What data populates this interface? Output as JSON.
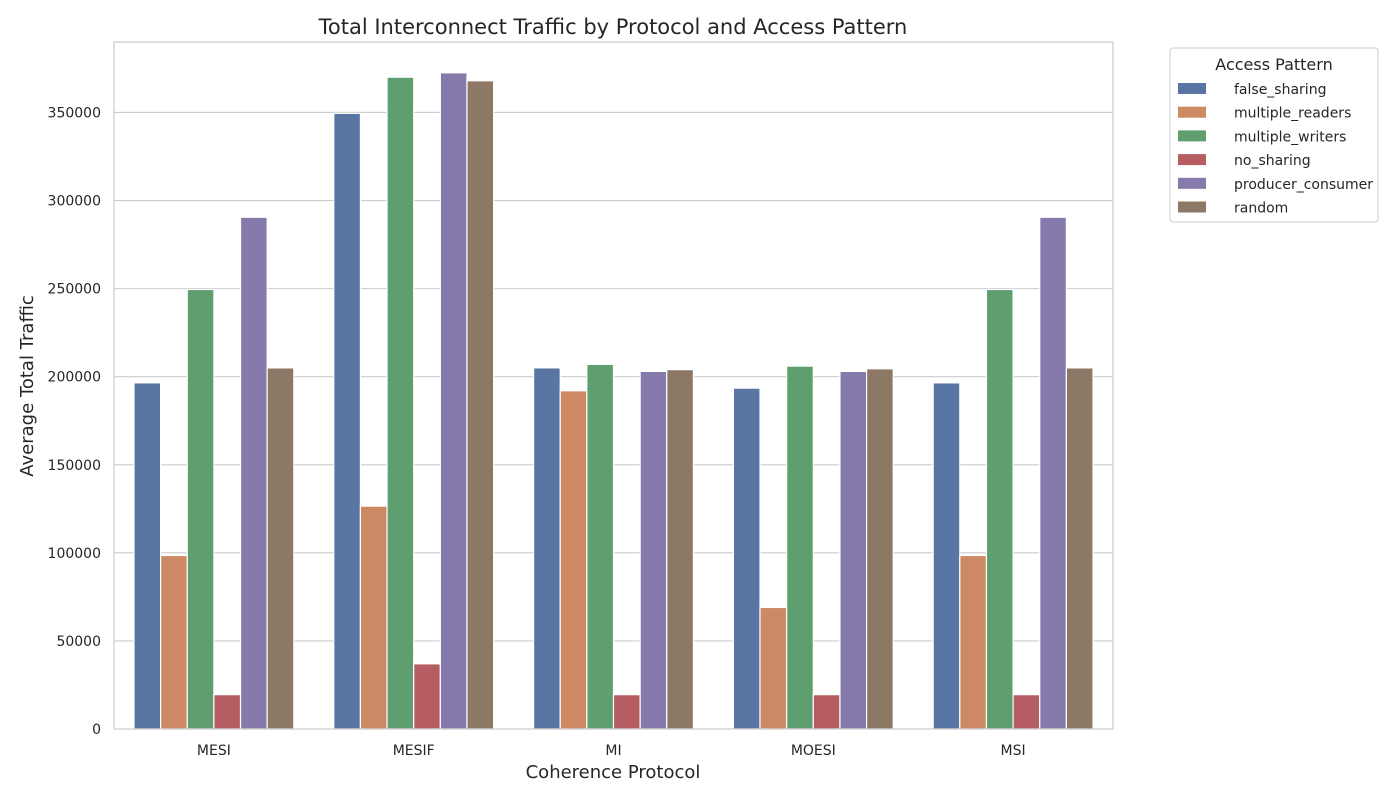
{
  "chart_data": {
    "type": "bar",
    "title": "Total Interconnect Traffic by Protocol and Access Pattern",
    "xlabel": "Coherence Protocol",
    "ylabel": "Average Total Traffic",
    "categories": [
      "MESI",
      "MESIF",
      "MI",
      "MOESI",
      "MSI"
    ],
    "ylim": [
      0,
      390000
    ],
    "yticks": [
      0,
      50000,
      100000,
      150000,
      200000,
      250000,
      300000,
      350000
    ],
    "ytick_labels": [
      "0",
      "50000",
      "100000",
      "150000",
      "200000",
      "250000",
      "300000",
      "350000"
    ],
    "grid": "horizontal",
    "legend": {
      "title": "Access Pattern",
      "position": "outside-top-right"
    },
    "series": [
      {
        "name": "false_sharing",
        "color": "#5875a4",
        "values": [
          196500,
          349500,
          205000,
          193500,
          196500
        ]
      },
      {
        "name": "multiple_readers",
        "color": "#cc8963",
        "values": [
          98500,
          126500,
          192000,
          69000,
          98500
        ]
      },
      {
        "name": "multiple_writers",
        "color": "#5f9e6e",
        "values": [
          249500,
          370000,
          207000,
          206000,
          249500
        ]
      },
      {
        "name": "no_sharing",
        "color": "#b55d60",
        "values": [
          19500,
          37000,
          19500,
          19500,
          19500
        ]
      },
      {
        "name": "producer_consumer",
        "color": "#857aab",
        "values": [
          290500,
          372500,
          203000,
          203000,
          290500
        ]
      },
      {
        "name": "random",
        "color": "#8d7866",
        "values": [
          205000,
          368000,
          204000,
          204500,
          205000
        ]
      }
    ]
  }
}
